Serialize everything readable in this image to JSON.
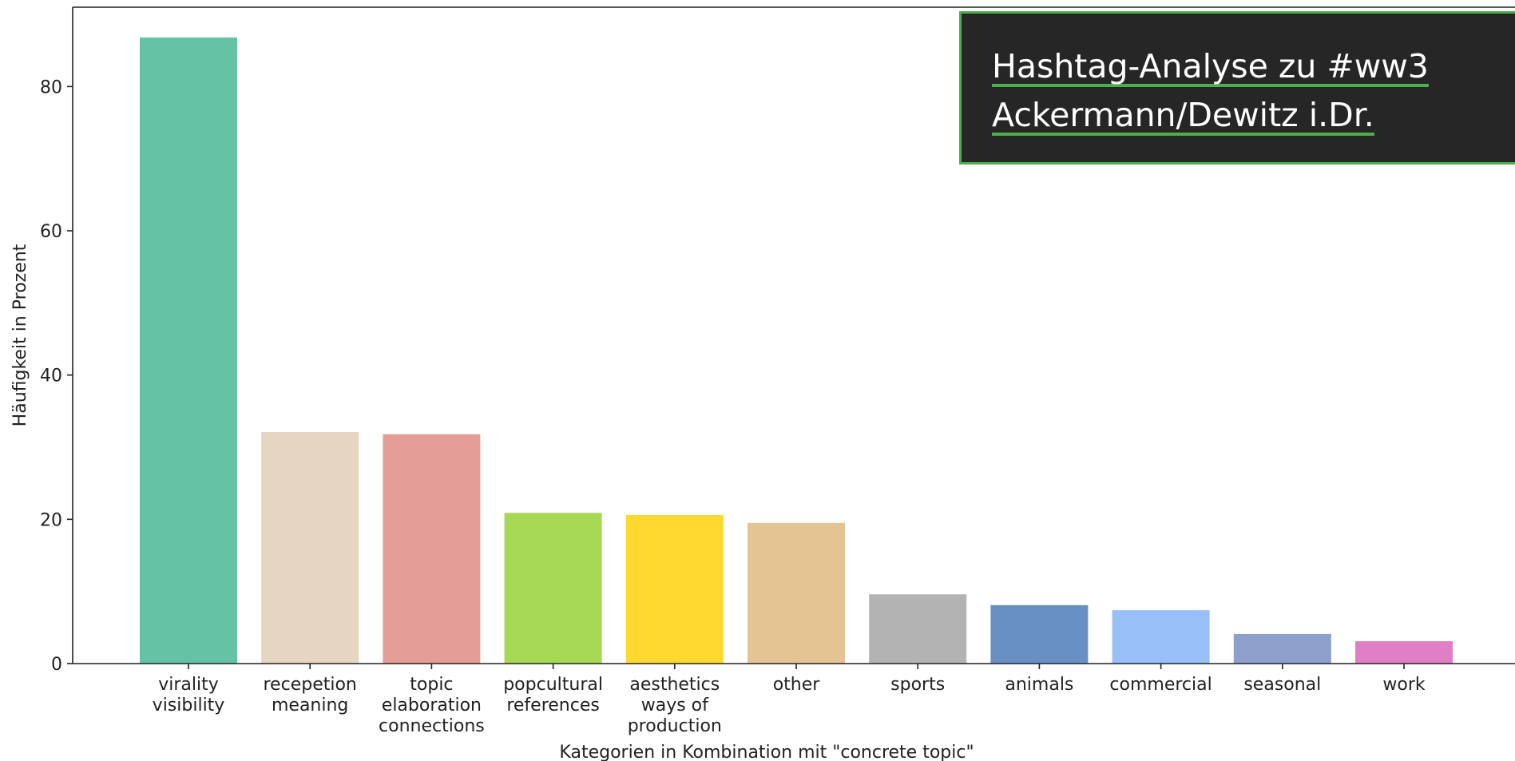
{
  "chart_data": {
    "type": "bar",
    "categories": [
      [
        "virality",
        "visibility"
      ],
      [
        "recepetion",
        "meaning"
      ],
      [
        "topic",
        "elaboration",
        "connections"
      ],
      [
        "popcultural",
        "references"
      ],
      [
        "aesthetics",
        "ways of",
        "production"
      ],
      [
        "other"
      ],
      [
        "sports"
      ],
      [
        "animals"
      ],
      [
        "commercial"
      ],
      [
        "seasonal"
      ],
      [
        "work"
      ]
    ],
    "values": [
      86.8,
      32.1,
      31.8,
      20.9,
      20.6,
      19.5,
      9.6,
      8.1,
      7.4,
      4.1,
      3.1
    ],
    "colors": [
      "#66c2a5",
      "#e5d5c1",
      "#e39d96",
      "#a6d854",
      "#ffd92f",
      "#e5c494",
      "#b3b3b3",
      "#6890c3",
      "#98bff8",
      "#8da0cb",
      "#e07fc5"
    ],
    "title": "",
    "xlabel": "Kategorien in Kombination mit \"concrete topic\"",
    "ylabel": "Häufigkeit in Prozent",
    "yticks": [
      0,
      20,
      40,
      60,
      80
    ],
    "ylim": [
      0,
      91
    ],
    "grid": false
  },
  "overlay": {
    "line1": "Hashtag-Analyse zu #ww3",
    "line2": "Ackermann/Dewitz i.Dr."
  }
}
